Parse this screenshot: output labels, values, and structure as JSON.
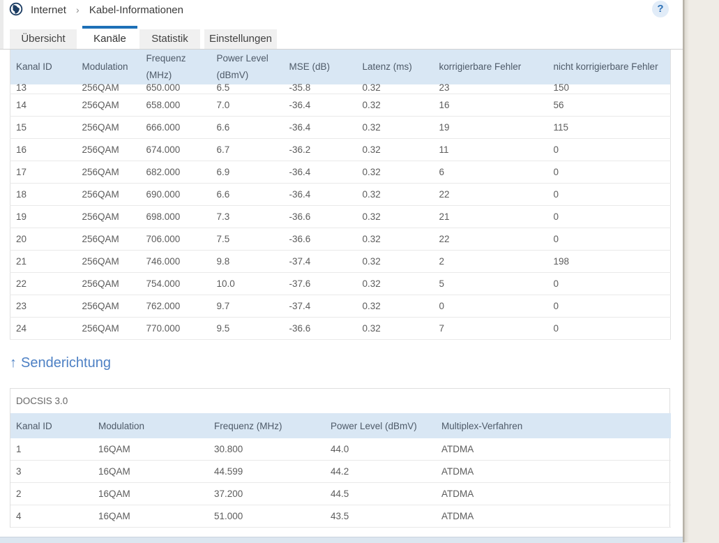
{
  "breadcrumb": {
    "home": "Internet",
    "separator": "›",
    "current": "Kabel-Informationen"
  },
  "help": {
    "label": "?"
  },
  "tabs": [
    {
      "label": "Übersicht",
      "active": false
    },
    {
      "label": "Kanäle",
      "active": true
    },
    {
      "label": "Statistik",
      "active": false
    },
    {
      "label": "Einstellungen",
      "active": false
    }
  ],
  "downstream": {
    "columns": [
      "Kanal ID",
      "Modulation",
      "Frequenz (MHz)",
      "Power Level (dBmV)",
      "MSE (dB)",
      "Latenz (ms)",
      "korrigierbare Fehler",
      "nicht korrigierbare Fehler"
    ],
    "rows": [
      [
        "13",
        "256QAM",
        "650.000",
        "6.5",
        "-35.8",
        "0.32",
        "23",
        "150"
      ],
      [
        "14",
        "256QAM",
        "658.000",
        "7.0",
        "-36.4",
        "0.32",
        "16",
        "56"
      ],
      [
        "15",
        "256QAM",
        "666.000",
        "6.6",
        "-36.4",
        "0.32",
        "19",
        "115"
      ],
      [
        "16",
        "256QAM",
        "674.000",
        "6.7",
        "-36.2",
        "0.32",
        "11",
        "0"
      ],
      [
        "17",
        "256QAM",
        "682.000",
        "6.9",
        "-36.4",
        "0.32",
        "6",
        "0"
      ],
      [
        "18",
        "256QAM",
        "690.000",
        "6.6",
        "-36.4",
        "0.32",
        "22",
        "0"
      ],
      [
        "19",
        "256QAM",
        "698.000",
        "7.3",
        "-36.6",
        "0.32",
        "21",
        "0"
      ],
      [
        "20",
        "256QAM",
        "706.000",
        "7.5",
        "-36.6",
        "0.32",
        "22",
        "0"
      ],
      [
        "21",
        "256QAM",
        "746.000",
        "9.8",
        "-37.4",
        "0.32",
        "2",
        "198"
      ],
      [
        "22",
        "256QAM",
        "754.000",
        "10.0",
        "-37.6",
        "0.32",
        "5",
        "0"
      ],
      [
        "23",
        "256QAM",
        "762.000",
        "9.7",
        "-37.4",
        "0.32",
        "0",
        "0"
      ],
      [
        "24",
        "256QAM",
        "770.000",
        "9.5",
        "-36.6",
        "0.32",
        "7",
        "0"
      ]
    ]
  },
  "upstream": {
    "heading_arrow": "↑",
    "heading_text": "Senderichtung",
    "group_label": "DOCSIS 3.0",
    "columns": [
      "Kanal ID",
      "Modulation",
      "Frequenz (MHz)",
      "Power Level (dBmV)",
      "Multiplex-Verfahren"
    ],
    "rows": [
      [
        "1",
        "16QAM",
        "30.800",
        "44.0",
        "ATDMA"
      ],
      [
        "3",
        "16QAM",
        "44.599",
        "44.2",
        "ATDMA"
      ],
      [
        "2",
        "16QAM",
        "37.200",
        "44.5",
        "ATDMA"
      ],
      [
        "4",
        "16QAM",
        "51.000",
        "43.5",
        "ATDMA"
      ]
    ]
  },
  "colors": {
    "accent_blue": "#1d70b7",
    "table_header_bg": "#d9e7f4",
    "heading_blue": "#4d80c4",
    "help_icon_bg": "#e1ecf8",
    "page_bg": "#ffffff",
    "desktop_bg": "#efece6"
  }
}
